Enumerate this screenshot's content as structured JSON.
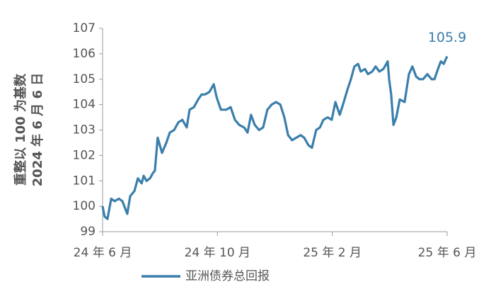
{
  "chart_data": {
    "type": "line",
    "y_label_lines": [
      "重整以 100 为基数",
      "2024 年 6 月 6 日"
    ],
    "annotation": "105.9",
    "x": [
      0,
      0.07,
      0.17,
      0.3,
      0.42,
      0.57,
      0.69,
      0.79,
      0.86,
      0.96,
      1.11,
      1.23,
      1.36,
      1.43,
      1.53,
      1.65,
      1.75,
      1.82,
      1.92,
      2.07,
      2.22,
      2.34,
      2.49,
      2.64,
      2.78,
      2.93,
      3.03,
      3.18,
      3.33,
      3.45,
      3.57,
      3.72,
      3.87,
      3.97,
      4.12,
      4.31,
      4.46,
      4.61,
      4.76,
      4.93,
      5.05,
      5.17,
      5.3,
      5.45,
      5.59,
      5.74,
      5.89,
      6.04,
      6.19,
      6.33,
      6.46,
      6.6,
      6.75,
      6.9,
      7.02,
      7.17,
      7.29,
      7.44,
      7.57,
      7.69,
      7.84,
      7.98,
      8.11,
      8.26,
      8.4,
      8.53,
      8.65,
      8.77,
      8.9,
      8.99,
      9.14,
      9.24,
      9.39,
      9.51,
      9.64,
      9.78,
      9.93,
      9.98,
      10.05,
      10.13,
      10.23,
      10.35,
      10.52,
      10.67,
      10.79,
      10.92,
      11.04,
      11.16,
      11.31,
      11.46,
      11.56,
      11.68,
      11.78,
      11.88,
      12.0
    ],
    "series": [
      {
        "name": "亚洲债券总回报",
        "color": "#3a7eab",
        "values": [
          100.0,
          99.6,
          99.5,
          100.3,
          100.2,
          100.3,
          100.2,
          99.9,
          99.7,
          100.4,
          100.6,
          101.1,
          100.9,
          101.2,
          101.0,
          101.1,
          101.3,
          101.4,
          102.7,
          102.1,
          102.5,
          102.9,
          103.0,
          103.3,
          103.4,
          103.1,
          103.8,
          103.9,
          104.2,
          104.4,
          104.4,
          104.5,
          104.8,
          104.3,
          103.8,
          103.8,
          103.9,
          103.4,
          103.2,
          103.1,
          102.9,
          103.6,
          103.2,
          103.0,
          103.1,
          103.8,
          104.0,
          104.1,
          104.0,
          103.5,
          102.8,
          102.6,
          102.7,
          102.8,
          102.7,
          102.4,
          102.3,
          103.0,
          103.1,
          103.4,
          103.5,
          103.4,
          104.1,
          103.6,
          104.1,
          104.6,
          105.0,
          105.5,
          105.6,
          105.3,
          105.4,
          105.2,
          105.3,
          105.5,
          105.3,
          105.4,
          105.7,
          105.0,
          104.4,
          103.2,
          103.5,
          104.2,
          104.1,
          105.2,
          105.5,
          105.1,
          105.0,
          105.0,
          105.2,
          105.0,
          105.0,
          105.4,
          105.7,
          105.6,
          105.9
        ]
      }
    ],
    "xlim": [
      0,
      12
    ],
    "xticks": [
      {
        "value": 0,
        "label": "24 年 6 月"
      },
      {
        "value": 4,
        "label": "24 年 10 月"
      },
      {
        "value": 8,
        "label": "25 年 2 月"
      },
      {
        "value": 12,
        "label": "25 年 6 月"
      }
    ],
    "ylim": [
      99,
      107
    ],
    "yticks": [
      99,
      100,
      101,
      102,
      103,
      104,
      105,
      106,
      107
    ],
    "grid": false
  }
}
